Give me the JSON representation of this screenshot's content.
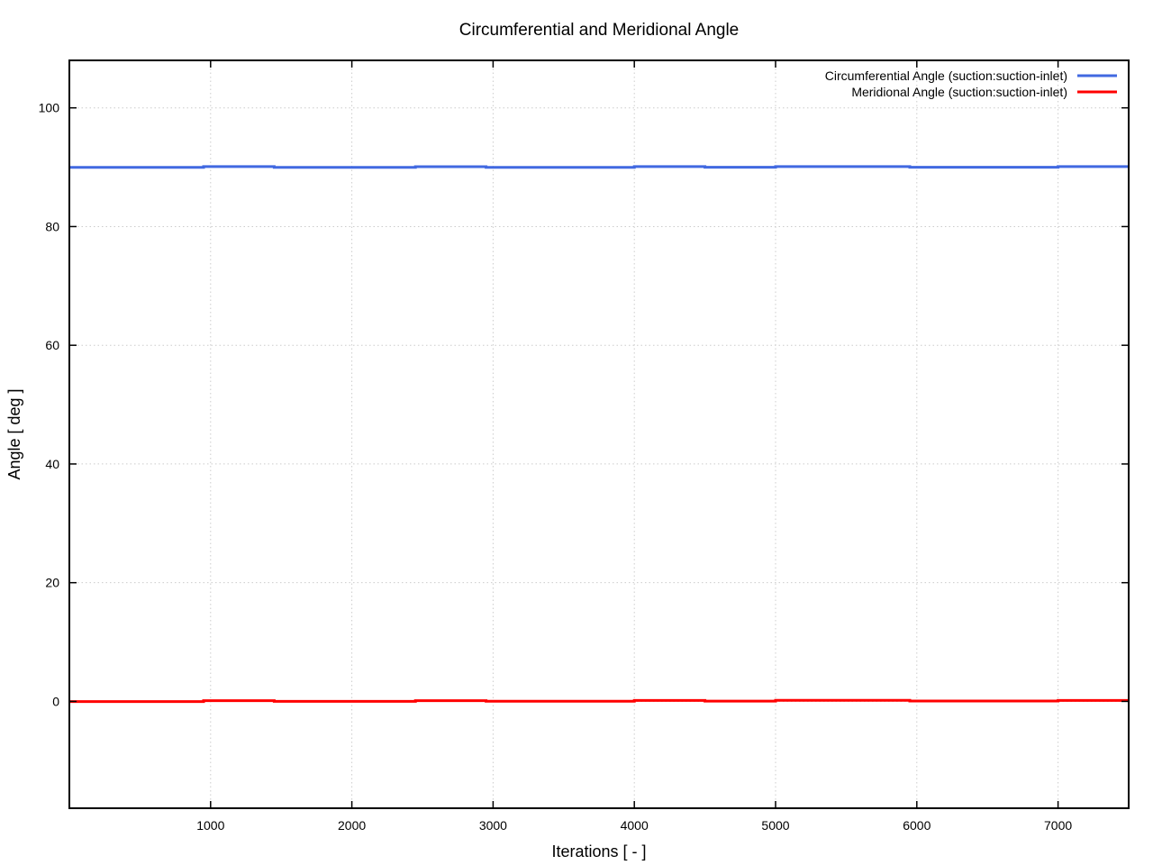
{
  "chart_data": {
    "type": "line",
    "title": "Circumferential and Meridional Angle",
    "xlabel": "Iterations [ - ]",
    "ylabel": "Angle [ deg ]",
    "xlim": [
      0,
      7500
    ],
    "ylim": [
      -18,
      108
    ],
    "xticks": [
      1000,
      2000,
      3000,
      4000,
      5000,
      6000,
      7000
    ],
    "yticks": [
      0,
      20,
      40,
      60,
      80,
      100
    ],
    "grid": true,
    "legend_position": "top-right-inside",
    "colors": {
      "background": "#ffffff",
      "border": "#000000",
      "grid": "#cccccc",
      "tick_text": "#000000"
    },
    "series": [
      {
        "name": "Circumferential Angle (suction:suction-inlet)",
        "color": "#4169e1",
        "line_width": 3,
        "points": [
          [
            0,
            89.97
          ],
          [
            950,
            89.97
          ],
          [
            950,
            90.1
          ],
          [
            1450,
            90.1
          ],
          [
            1450,
            89.97
          ],
          [
            2450,
            89.97
          ],
          [
            2450,
            90.08
          ],
          [
            2950,
            90.08
          ],
          [
            2950,
            89.97
          ],
          [
            4000,
            89.97
          ],
          [
            4000,
            90.1
          ],
          [
            4500,
            90.1
          ],
          [
            4500,
            90.0
          ],
          [
            5000,
            90.0
          ],
          [
            5000,
            90.1
          ],
          [
            5950,
            90.1
          ],
          [
            5950,
            90.0
          ],
          [
            7000,
            90.0
          ],
          [
            7000,
            90.1
          ],
          [
            7500,
            90.1
          ]
        ]
      },
      {
        "name": "Meridional Angle (suction:suction-inlet)",
        "color": "#ff0000",
        "line_width": 3,
        "points": [
          [
            0,
            -0.03
          ],
          [
            950,
            -0.03
          ],
          [
            950,
            0.12
          ],
          [
            1450,
            0.12
          ],
          [
            1450,
            0.0
          ],
          [
            2450,
            0.0
          ],
          [
            2450,
            0.12
          ],
          [
            2950,
            0.12
          ],
          [
            2950,
            0.03
          ],
          [
            4000,
            0.03
          ],
          [
            4000,
            0.15
          ],
          [
            4500,
            0.15
          ],
          [
            4500,
            0.05
          ],
          [
            5000,
            0.05
          ],
          [
            5000,
            0.17
          ],
          [
            5950,
            0.17
          ],
          [
            5950,
            0.06
          ],
          [
            7000,
            0.06
          ],
          [
            7000,
            0.15
          ],
          [
            7500,
            0.15
          ]
        ]
      }
    ]
  }
}
